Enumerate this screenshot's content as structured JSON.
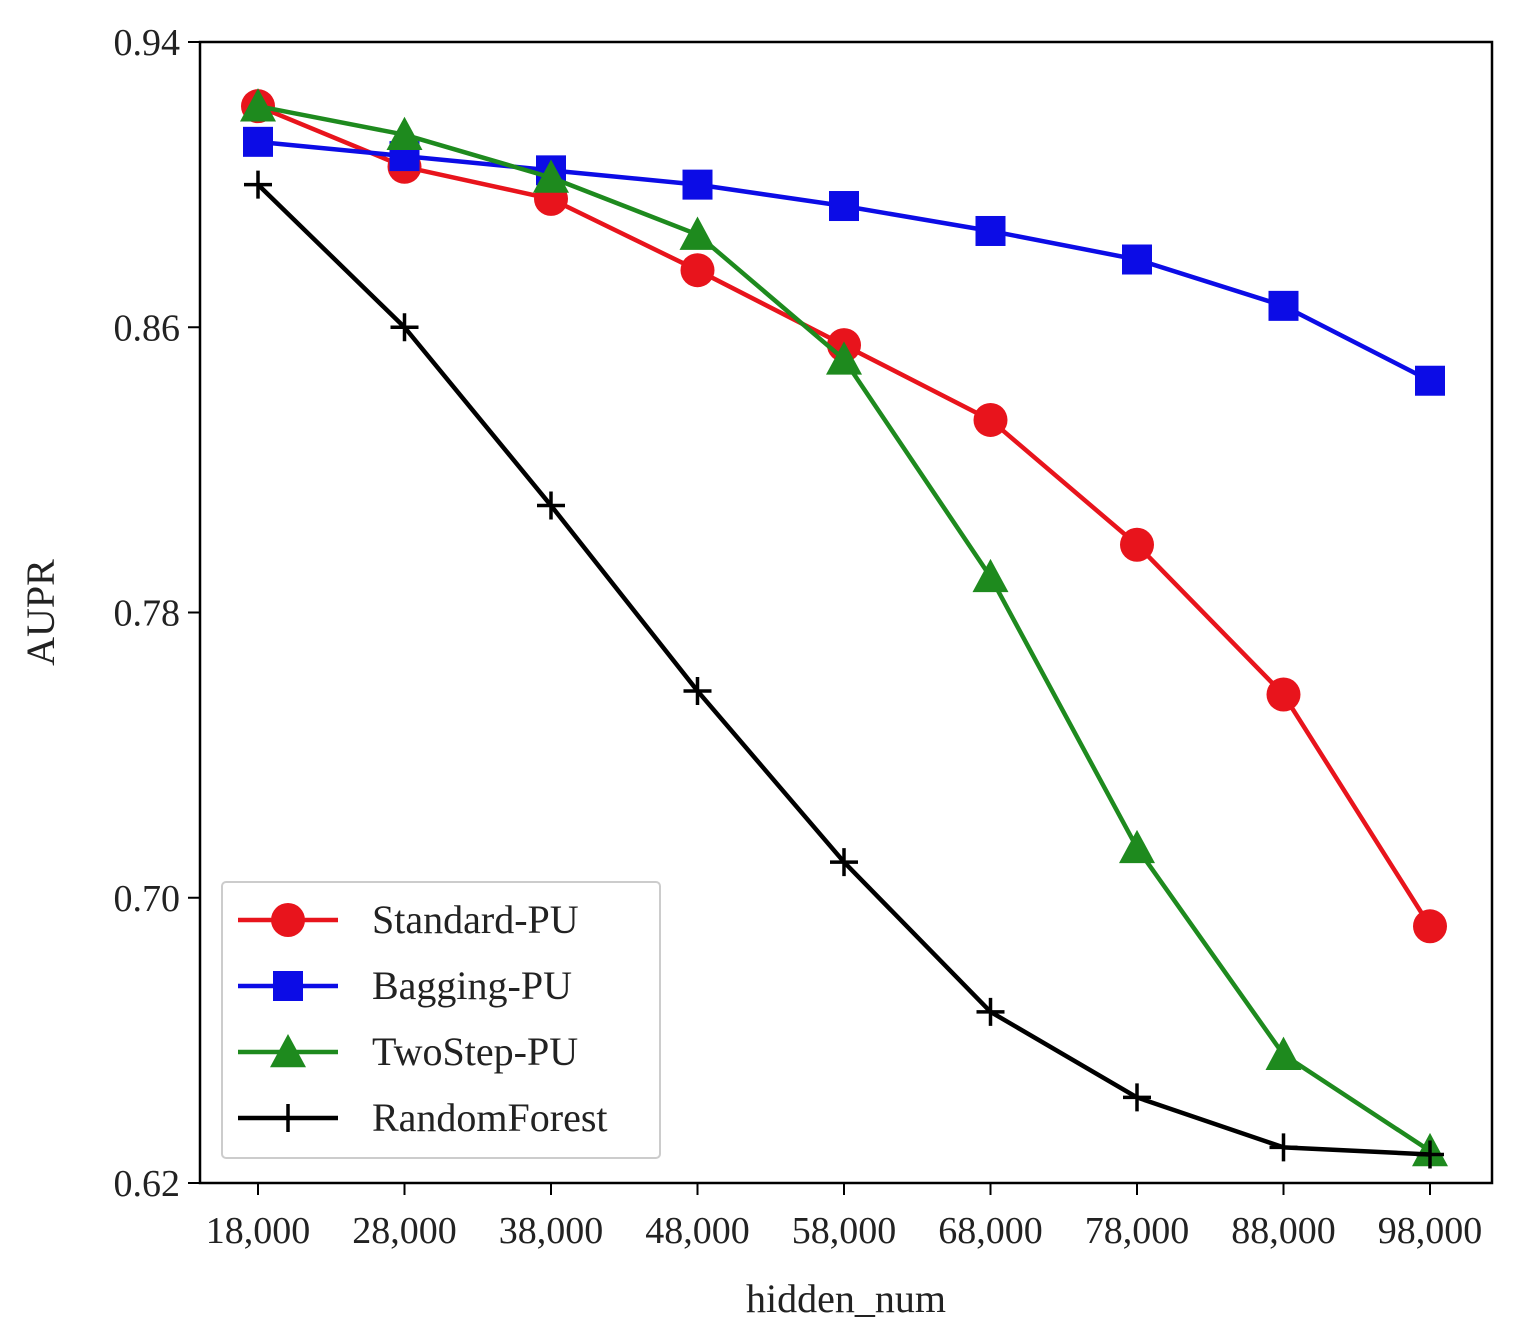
{
  "chart_data": {
    "type": "line",
    "title": "",
    "xlabel": "hidden_num",
    "ylabel": "AUPR",
    "categories": [
      "18,000",
      "28,000",
      "38,000",
      "48,000",
      "58,000",
      "68,000",
      "78,000",
      "88,000",
      "98,000"
    ],
    "ylim": [
      0.62,
      0.94
    ],
    "yticks": [
      "0.62",
      "0.70",
      "0.78",
      "0.86",
      "0.94"
    ],
    "grid": false,
    "legend_position": "lower-left",
    "series": [
      {
        "name": "Standard-PU",
        "color": "#e8141c",
        "marker": "circle",
        "values": [
          0.922,
          0.905,
          0.896,
          0.876,
          0.855,
          0.834,
          0.799,
          0.757,
          0.692
        ]
      },
      {
        "name": "Bagging-PU",
        "color": "#0c0ce6",
        "marker": "square",
        "values": [
          0.912,
          0.908,
          0.904,
          0.9,
          0.894,
          0.887,
          0.879,
          0.866,
          0.845
        ]
      },
      {
        "name": "TwoStep-PU",
        "color": "#1e8a1e",
        "marker": "triangle",
        "values": [
          0.922,
          0.914,
          0.902,
          0.886,
          0.851,
          0.79,
          0.714,
          0.656,
          0.629
        ]
      },
      {
        "name": "RandomForest",
        "color": "#000000",
        "marker": "plus",
        "values": [
          0.9,
          0.86,
          0.81,
          0.758,
          0.71,
          0.668,
          0.644,
          0.63,
          0.628
        ]
      }
    ]
  }
}
